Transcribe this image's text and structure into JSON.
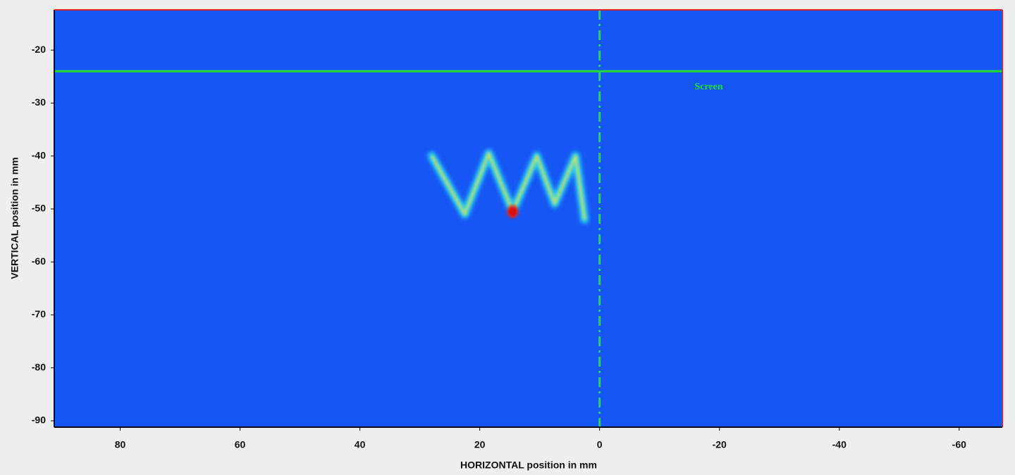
{
  "chart_data": {
    "type": "image",
    "xlabel": "HORIZONTAL position in mm",
    "ylabel": "VERTICAL position in mm",
    "xlim": [
      91,
      -67.2
    ],
    "ylim": [
      -91.2,
      -12.4
    ],
    "xticks": [
      80,
      60,
      40,
      20,
      0,
      -20,
      -40,
      -60
    ],
    "yticks": [
      -20,
      -30,
      -40,
      -50,
      -60,
      -70,
      -80,
      -90
    ],
    "background_color": "#1656f5",
    "trace": {
      "color": "#2ee0f0",
      "core_color": "#f4f040",
      "x": [
        28,
        22.5,
        18.5,
        14.5,
        10.5,
        7.5,
        4,
        2.5
      ],
      "y": [
        -40,
        -51,
        -39.5,
        -50.5,
        -40,
        -49,
        -40,
        -52
      ]
    },
    "hline": {
      "y": -24,
      "color": "#22dd33"
    },
    "vline": {
      "x": 0,
      "color": "#22dd33"
    },
    "annotation": {
      "text": "Screen",
      "x": -18.2,
      "y": -27,
      "color": "#22dd33"
    }
  }
}
